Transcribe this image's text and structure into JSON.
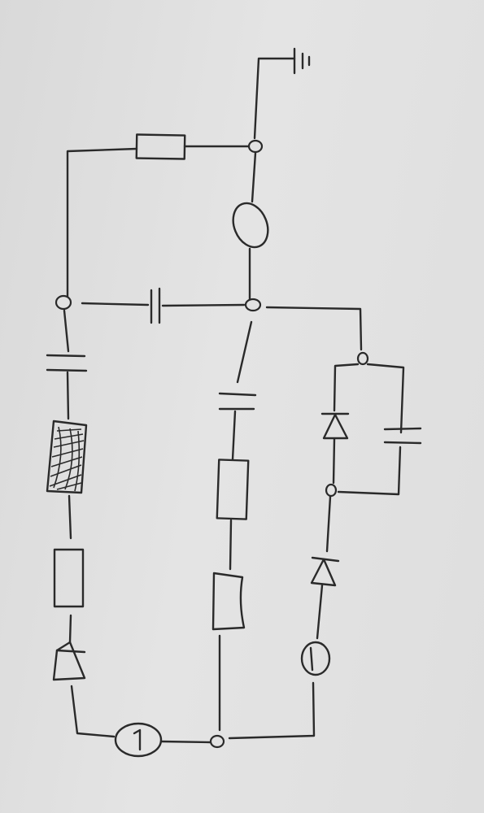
{
  "diagram": {
    "kind": "hand-drawn circuit schematic",
    "ink_color": "#2a2a2a",
    "paper_color": "#e0e0e0",
    "labels": []
  }
}
